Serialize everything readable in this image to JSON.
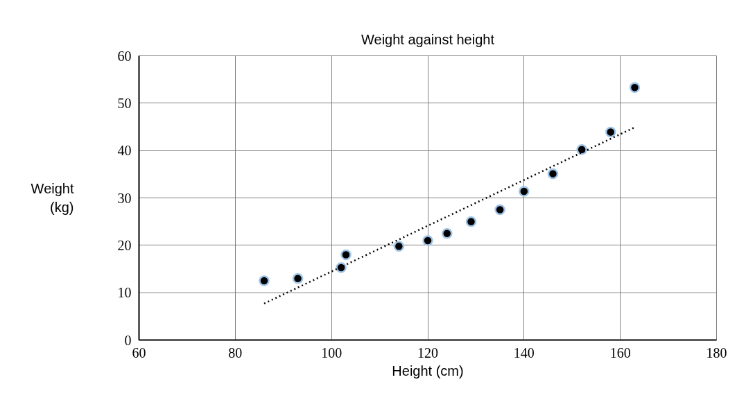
{
  "chart_data": {
    "type": "scatter",
    "title": "Weight against height",
    "xlabel": "Height (cm)",
    "ylabel": "Weight\n(kg)",
    "series": [
      {
        "color": "#000000",
        "x": [
          86,
          93,
          102,
          103,
          114,
          120,
          124,
          129,
          135,
          140,
          146,
          152,
          158,
          163
        ],
        "values": [
          12.5,
          13,
          15.3,
          18,
          19.8,
          21,
          22.5,
          25,
          27.5,
          31.4,
          35.1,
          40.2,
          43.9,
          53.3
        ]
      },
      {
        "type": "line",
        "color": "#000000",
        "line_style": "dotted",
        "marker": "none",
        "x": [
          86,
          163
        ],
        "values": [
          7.7,
          44.9
        ]
      }
    ],
    "xlim": [
      60,
      180
    ],
    "ylim": [
      0,
      60
    ],
    "xticks": [
      60,
      80,
      100,
      120,
      140,
      160,
      180
    ],
    "yticks": [
      0,
      10,
      20,
      30,
      40,
      50,
      60
    ],
    "grid": true,
    "marker": "circle"
  }
}
